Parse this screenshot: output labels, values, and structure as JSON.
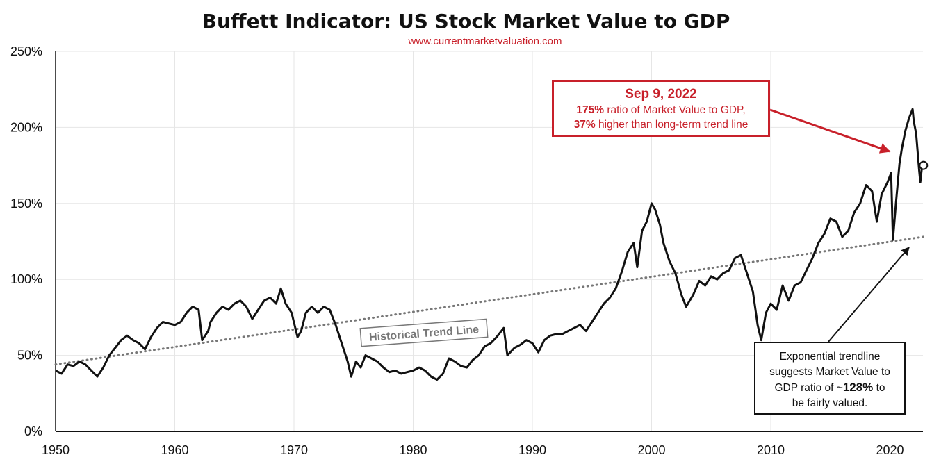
{
  "title": "Buffett Indicator: US Stock Market Value to GDP",
  "subtitle": "www.currentmarketvaluation.com",
  "colors": {
    "line": "#111111",
    "trend": "#777777",
    "accent": "#c8202a",
    "grid": "#e6e6e6"
  },
  "callout_latest": {
    "date": "Sep 9, 2022",
    "line1_value": "175%",
    "line1_text": " ratio of Market Value to GDP,",
    "line2_value": "37%",
    "line2_text": " higher than long-term trend line"
  },
  "callout_trend": {
    "line1": "Exponential trendline",
    "line2": "suggests Market Value to",
    "line3_pre": "GDP ratio of ~",
    "line3_value": "128%",
    "line3_post": " to",
    "line4": "be fairly valued."
  },
  "chart_data": {
    "type": "line",
    "title": "Buffett Indicator: US Stock Market Value to GDP",
    "xlabel": "",
    "ylabel": "",
    "xlim": [
      1950,
      2022.8
    ],
    "ylim": [
      0,
      250
    ],
    "grid": true,
    "x_ticks": [
      "1950",
      "1960",
      "1970",
      "1980",
      "1990",
      "2000",
      "2010",
      "2020"
    ],
    "y_ticks": [
      "0%",
      "50%",
      "100%",
      "150%",
      "200%",
      "250%"
    ],
    "series": [
      {
        "name": "",
        "points": [
          [
            1950.0,
            40
          ],
          [
            1950.5,
            38
          ],
          [
            1951.0,
            44
          ],
          [
            1951.5,
            43
          ],
          [
            1952.0,
            46
          ],
          [
            1952.5,
            44
          ],
          [
            1953.0,
            40
          ],
          [
            1953.5,
            36
          ],
          [
            1954.0,
            42
          ],
          [
            1954.5,
            50
          ],
          [
            1955.0,
            55
          ],
          [
            1955.5,
            60
          ],
          [
            1956.0,
            63
          ],
          [
            1956.5,
            60
          ],
          [
            1957.0,
            58
          ],
          [
            1957.5,
            54
          ],
          [
            1958.0,
            62
          ],
          [
            1958.5,
            68
          ],
          [
            1959.0,
            72
          ],
          [
            1959.5,
            71
          ],
          [
            1960.0,
            70
          ],
          [
            1960.5,
            72
          ],
          [
            1961.0,
            78
          ],
          [
            1961.5,
            82
          ],
          [
            1962.0,
            80
          ],
          [
            1962.3,
            60
          ],
          [
            1962.8,
            66
          ],
          [
            1963.0,
            72
          ],
          [
            1963.5,
            78
          ],
          [
            1964.0,
            82
          ],
          [
            1964.5,
            80
          ],
          [
            1965.0,
            84
          ],
          [
            1965.5,
            86
          ],
          [
            1966.0,
            82
          ],
          [
            1966.5,
            74
          ],
          [
            1967.0,
            80
          ],
          [
            1967.5,
            86
          ],
          [
            1968.0,
            88
          ],
          [
            1968.5,
            84
          ],
          [
            1968.9,
            94
          ],
          [
            1969.3,
            84
          ],
          [
            1969.8,
            78
          ],
          [
            1970.3,
            62
          ],
          [
            1970.6,
            66
          ],
          [
            1971.0,
            78
          ],
          [
            1971.5,
            82
          ],
          [
            1972.0,
            78
          ],
          [
            1972.5,
            82
          ],
          [
            1973.0,
            80
          ],
          [
            1973.5,
            70
          ],
          [
            1974.0,
            58
          ],
          [
            1974.5,
            46
          ],
          [
            1974.8,
            36
          ],
          [
            1975.2,
            46
          ],
          [
            1975.6,
            42
          ],
          [
            1976.0,
            50
          ],
          [
            1976.5,
            48
          ],
          [
            1977.0,
            46
          ],
          [
            1977.5,
            42
          ],
          [
            1978.0,
            39
          ],
          [
            1978.5,
            40
          ],
          [
            1979.0,
            38
          ],
          [
            1979.5,
            39
          ],
          [
            1980.0,
            40
          ],
          [
            1980.5,
            42
          ],
          [
            1981.0,
            40
          ],
          [
            1981.5,
            36
          ],
          [
            1982.0,
            34
          ],
          [
            1982.5,
            38
          ],
          [
            1983.0,
            48
          ],
          [
            1983.5,
            46
          ],
          [
            1984.0,
            43
          ],
          [
            1984.5,
            42
          ],
          [
            1985.0,
            47
          ],
          [
            1985.5,
            50
          ],
          [
            1986.0,
            56
          ],
          [
            1986.5,
            58
          ],
          [
            1987.0,
            62
          ],
          [
            1987.6,
            68
          ],
          [
            1987.9,
            50
          ],
          [
            1988.5,
            55
          ],
          [
            1989.0,
            57
          ],
          [
            1989.5,
            60
          ],
          [
            1990.0,
            58
          ],
          [
            1990.5,
            52
          ],
          [
            1991.0,
            60
          ],
          [
            1991.5,
            63
          ],
          [
            1992.0,
            64
          ],
          [
            1992.5,
            64
          ],
          [
            1993.0,
            66
          ],
          [
            1993.5,
            68
          ],
          [
            1994.0,
            70
          ],
          [
            1994.5,
            66
          ],
          [
            1995.0,
            72
          ],
          [
            1995.5,
            78
          ],
          [
            1996.0,
            84
          ],
          [
            1996.5,
            88
          ],
          [
            1997.0,
            94
          ],
          [
            1997.5,
            105
          ],
          [
            1998.0,
            118
          ],
          [
            1998.5,
            124
          ],
          [
            1998.8,
            108
          ],
          [
            1999.2,
            132
          ],
          [
            1999.6,
            138
          ],
          [
            2000.0,
            150
          ],
          [
            2000.3,
            146
          ],
          [
            2000.7,
            136
          ],
          [
            2001.0,
            124
          ],
          [
            2001.5,
            112
          ],
          [
            2002.0,
            104
          ],
          [
            2002.5,
            90
          ],
          [
            2002.9,
            82
          ],
          [
            2003.5,
            90
          ],
          [
            2004.0,
            99
          ],
          [
            2004.5,
            96
          ],
          [
            2005.0,
            102
          ],
          [
            2005.5,
            100
          ],
          [
            2006.0,
            104
          ],
          [
            2006.5,
            106
          ],
          [
            2007.0,
            114
          ],
          [
            2007.5,
            116
          ],
          [
            2008.0,
            104
          ],
          [
            2008.5,
            92
          ],
          [
            2008.9,
            70
          ],
          [
            2009.2,
            60
          ],
          [
            2009.6,
            78
          ],
          [
            2010.0,
            84
          ],
          [
            2010.5,
            80
          ],
          [
            2011.0,
            96
          ],
          [
            2011.5,
            86
          ],
          [
            2012.0,
            96
          ],
          [
            2012.5,
            98
          ],
          [
            2013.0,
            106
          ],
          [
            2013.5,
            114
          ],
          [
            2014.0,
            124
          ],
          [
            2014.5,
            130
          ],
          [
            2015.0,
            140
          ],
          [
            2015.5,
            138
          ],
          [
            2016.0,
            128
          ],
          [
            2016.5,
            132
          ],
          [
            2017.0,
            144
          ],
          [
            2017.5,
            150
          ],
          [
            2018.0,
            162
          ],
          [
            2018.5,
            158
          ],
          [
            2018.9,
            138
          ],
          [
            2019.3,
            156
          ],
          [
            2019.8,
            164
          ],
          [
            2020.1,
            170
          ],
          [
            2020.25,
            126
          ],
          [
            2020.5,
            150
          ],
          [
            2020.8,
            176
          ],
          [
            2021.0,
            186
          ],
          [
            2021.3,
            198
          ],
          [
            2021.6,
            206
          ],
          [
            2021.9,
            212
          ],
          [
            2022.0,
            204
          ],
          [
            2022.2,
            196
          ],
          [
            2022.45,
            172
          ],
          [
            2022.55,
            164
          ],
          [
            2022.7,
            175
          ]
        ]
      }
    ],
    "trend_line": {
      "name": "Historical Trend Line",
      "start": [
        1950,
        44
      ],
      "end": [
        2022.8,
        128
      ]
    },
    "latest_point": [
      2022.7,
      175
    ]
  }
}
